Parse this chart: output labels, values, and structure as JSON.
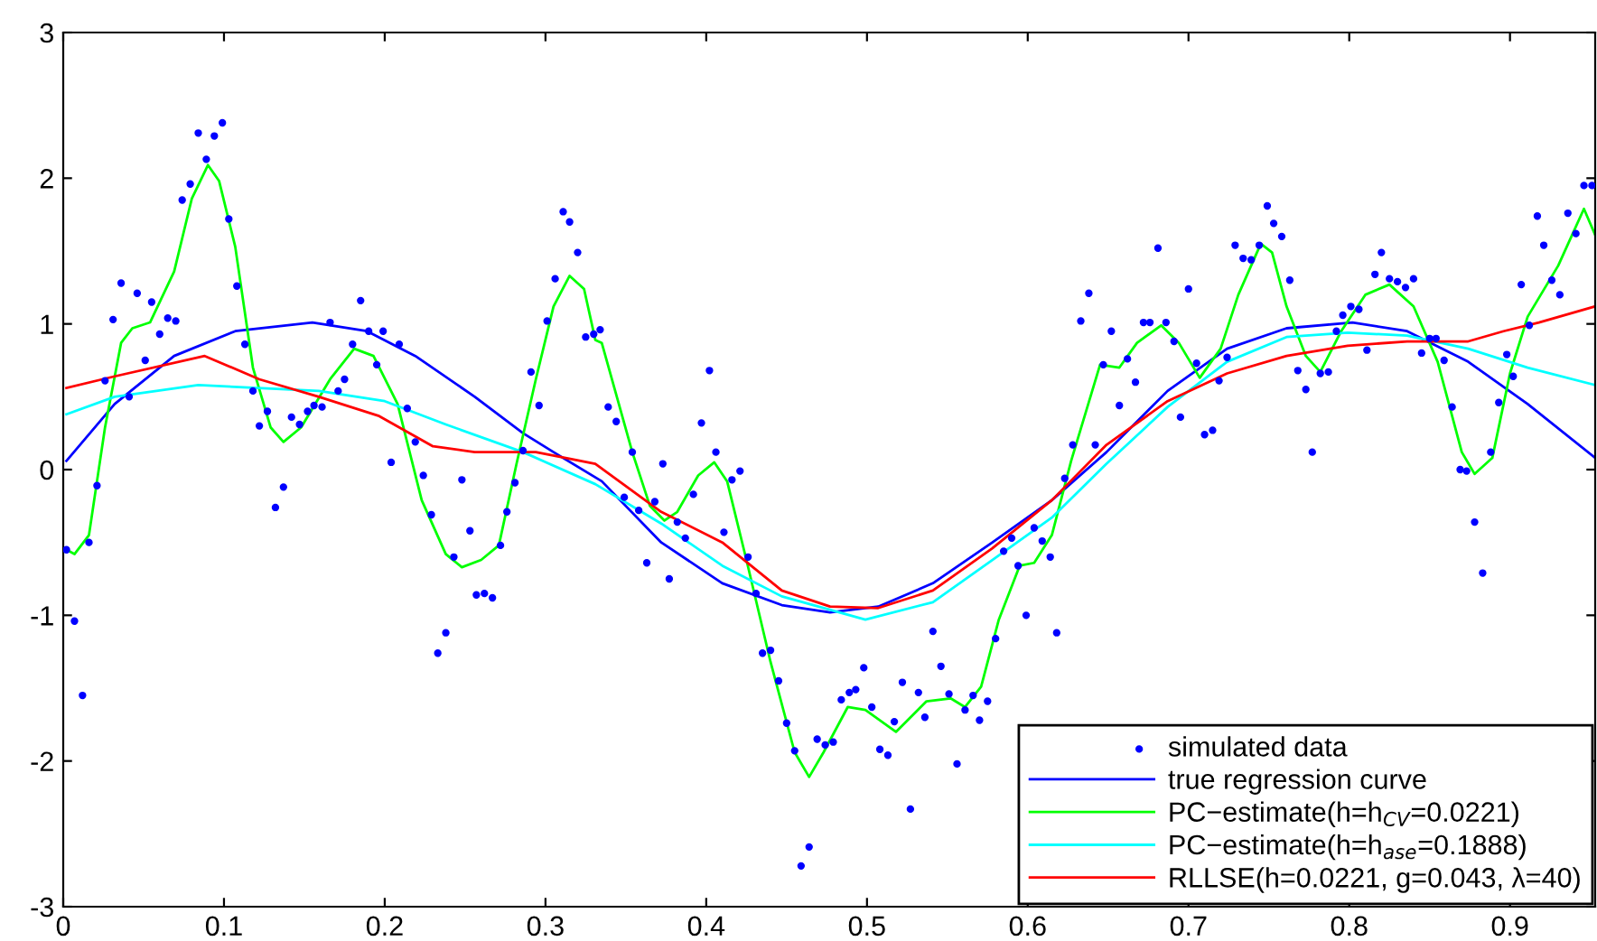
{
  "chart_data": {
    "type": "line",
    "xlim": [
      0,
      0.953
    ],
    "ylim": [
      -3,
      3
    ],
    "xticks": [
      0,
      0.1,
      0.2,
      0.3,
      0.4,
      0.5,
      0.6,
      0.7,
      0.8,
      0.9
    ],
    "yticks": [
      -3,
      -2,
      -1,
      0,
      1,
      2,
      3
    ],
    "grid": false,
    "legend": "bottom right",
    "series": [
      {
        "name": "simulated data",
        "type": "scatter",
        "marker": "circle",
        "color": "#0000ff",
        "x": [
          0.002,
          0.007,
          0.012,
          0.016,
          0.021,
          0.026,
          0.031,
          0.036,
          0.041,
          0.046,
          0.051,
          0.055,
          0.06,
          0.065,
          0.07,
          0.074,
          0.079,
          0.084,
          0.089,
          0.094,
          0.099,
          0.103,
          0.108,
          0.113,
          0.118,
          0.122,
          0.127,
          0.132,
          0.137,
          0.142,
          0.147,
          0.152,
          0.156,
          0.161,
          0.166,
          0.171,
          0.175,
          0.18,
          0.185,
          0.19,
          0.195,
          0.199,
          0.204,
          0.209,
          0.214,
          0.219,
          0.224,
          0.229,
          0.233,
          0.238,
          0.243,
          0.248,
          0.253,
          0.257,
          0.262,
          0.267,
          0.272,
          0.276,
          0.281,
          0.286,
          0.291,
          0.296,
          0.301,
          0.306,
          0.311,
          0.315,
          0.32,
          0.325,
          0.33,
          0.334,
          0.339,
          0.344,
          0.349,
          0.354,
          0.358,
          0.363,
          0.368,
          0.373,
          0.377,
          0.382,
          0.387,
          0.392,
          0.397,
          0.402,
          0.406,
          0.411,
          0.416,
          0.421,
          0.426,
          0.431,
          0.435,
          0.44,
          0.445,
          0.45,
          0.455,
          0.459,
          0.464,
          0.469,
          0.474,
          0.479,
          0.484,
          0.489,
          0.493,
          0.498,
          0.503,
          0.508,
          0.513,
          0.517,
          0.522,
          0.527,
          0.532,
          0.536,
          0.541,
          0.546,
          0.551,
          0.556,
          0.561,
          0.566,
          0.57,
          0.575,
          0.58,
          0.585,
          0.59,
          0.594,
          0.599,
          0.604,
          0.609,
          0.614,
          0.618,
          0.623,
          0.628,
          0.633,
          0.638,
          0.642,
          0.647,
          0.652,
          0.657,
          0.662,
          0.667,
          0.672,
          0.676,
          0.681,
          0.686,
          0.691,
          0.695,
          0.7,
          0.705,
          0.71,
          0.715,
          0.719,
          0.724,
          0.729,
          0.734,
          0.739,
          0.744,
          0.749,
          0.753,
          0.758,
          0.763,
          0.768,
          0.773,
          0.777,
          0.782,
          0.787,
          0.792,
          0.796,
          0.801,
          0.806,
          0.811,
          0.816,
          0.82,
          0.825,
          0.83,
          0.835,
          0.84,
          0.845,
          0.85,
          0.854,
          0.859,
          0.864,
          0.869,
          0.873,
          0.878,
          0.883,
          0.888,
          0.893,
          0.898,
          0.902,
          0.907,
          0.912,
          0.917,
          0.921,
          0.926,
          0.931,
          0.936,
          0.941,
          0.946,
          0.951
        ],
        "values": [
          -0.55,
          -1.04,
          -1.55,
          -0.5,
          -0.11,
          0.61,
          1.03,
          1.28,
          0.5,
          1.21,
          0.75,
          1.15,
          0.93,
          1.04,
          1.02,
          1.85,
          1.96,
          2.31,
          2.13,
          2.29,
          2.38,
          1.72,
          1.26,
          0.86,
          0.54,
          0.3,
          0.4,
          -0.26,
          -0.12,
          0.36,
          0.31,
          0.4,
          0.44,
          0.43,
          1.01,
          0.54,
          0.62,
          0.86,
          1.16,
          0.95,
          0.72,
          0.95,
          0.05,
          0.86,
          0.42,
          0.19,
          -0.04,
          -0.31,
          -1.26,
          -1.12,
          -0.6,
          -0.07,
          -0.42,
          -0.86,
          -0.85,
          -0.88,
          -0.52,
          -0.29,
          -0.09,
          0.13,
          0.67,
          0.44,
          1.02,
          1.31,
          1.77,
          1.7,
          1.49,
          0.91,
          0.93,
          0.96,
          0.43,
          0.33,
          -0.19,
          0.12,
          -0.28,
          -0.64,
          -0.22,
          0.04,
          -0.75,
          -0.36,
          -0.47,
          -0.17,
          0.32,
          0.68,
          0.12,
          -0.43,
          -0.07,
          -0.01,
          -0.6,
          -0.85,
          -1.26,
          -1.24,
          -1.45,
          -1.74,
          -1.93,
          -2.72,
          -2.59,
          -1.85,
          -1.89,
          -1.87,
          -1.58,
          -1.53,
          -1.51,
          -1.36,
          -1.63,
          -1.92,
          -1.96,
          -1.73,
          -1.46,
          -2.33,
          -1.53,
          -1.7,
          -1.11,
          -1.35,
          -1.54,
          -2.02,
          -1.65,
          -1.55,
          -1.72,
          -1.59,
          -1.16,
          -0.56,
          -0.47,
          -0.66,
          -1.0,
          -0.4,
          -0.49,
          -0.6,
          -1.12,
          -0.06,
          0.17,
          1.02,
          1.21,
          0.17,
          0.72,
          0.95,
          0.44,
          0.76,
          0.6,
          1.01,
          1.01,
          1.52,
          1.01,
          0.88,
          0.36,
          1.24,
          0.73,
          0.24,
          0.27,
          0.61,
          0.77,
          1.54,
          1.45,
          1.44,
          1.54,
          1.81,
          1.69,
          1.6,
          1.3,
          0.68,
          0.55,
          0.12,
          0.66,
          0.67,
          0.95,
          1.06,
          1.12,
          1.1,
          0.82,
          1.34,
          1.49,
          1.31,
          1.29,
          1.25,
          1.31,
          0.8,
          0.9,
          0.9,
          0.75,
          0.43,
          0.0,
          -0.01,
          -0.36,
          -0.71,
          0.12,
          0.46,
          0.79,
          0.64,
          1.27,
          0.99,
          1.74,
          1.54,
          1.3,
          1.2,
          1.76,
          1.62,
          1.95,
          1.95
        ]
      },
      {
        "name": "true regression curve",
        "color": "#0000ff",
        "x": [
          0.002,
          0.032,
          0.069,
          0.107,
          0.155,
          0.189,
          0.219,
          0.256,
          0.286,
          0.305,
          0.335,
          0.372,
          0.41,
          0.447,
          0.477,
          0.507,
          0.541,
          0.578,
          0.615,
          0.649,
          0.687,
          0.724,
          0.761,
          0.802,
          0.836,
          0.874,
          0.911,
          0.953
        ],
        "values": [
          0.06,
          0.45,
          0.78,
          0.95,
          1.01,
          0.95,
          0.78,
          0.5,
          0.25,
          0.12,
          -0.08,
          -0.5,
          -0.78,
          -0.93,
          -0.98,
          -0.94,
          -0.78,
          -0.5,
          -0.21,
          0.12,
          0.54,
          0.83,
          0.97,
          1.01,
          0.95,
          0.74,
          0.45,
          0.08
        ]
      },
      {
        "name": "PC−estimate(h=h$_{CV}$=0.0221)",
        "color": "#00ff00",
        "x": [
          0.002,
          0.007,
          0.016,
          0.026,
          0.036,
          0.043,
          0.054,
          0.069,
          0.08,
          0.09,
          0.097,
          0.107,
          0.118,
          0.129,
          0.137,
          0.148,
          0.166,
          0.181,
          0.193,
          0.208,
          0.223,
          0.238,
          0.248,
          0.26,
          0.271,
          0.282,
          0.294,
          0.305,
          0.315,
          0.324,
          0.331,
          0.335,
          0.354,
          0.365,
          0.374,
          0.382,
          0.395,
          0.405,
          0.413,
          0.425,
          0.44,
          0.455,
          0.464,
          0.473,
          0.488,
          0.499,
          0.518,
          0.537,
          0.552,
          0.561,
          0.571,
          0.582,
          0.595,
          0.604,
          0.615,
          0.627,
          0.645,
          0.657,
          0.668,
          0.683,
          0.694,
          0.707,
          0.72,
          0.731,
          0.745,
          0.752,
          0.761,
          0.773,
          0.782,
          0.795,
          0.81,
          0.825,
          0.84,
          0.855,
          0.87,
          0.878,
          0.889,
          0.9,
          0.911,
          0.93,
          0.946,
          0.953
        ],
        "values": [
          -0.55,
          -0.58,
          -0.45,
          0.29,
          0.87,
          0.97,
          1.01,
          1.36,
          1.86,
          2.09,
          1.98,
          1.53,
          0.7,
          0.29,
          0.19,
          0.29,
          0.62,
          0.83,
          0.78,
          0.45,
          -0.21,
          -0.58,
          -0.67,
          -0.62,
          -0.52,
          0.04,
          0.62,
          1.12,
          1.33,
          1.24,
          0.89,
          0.87,
          0.12,
          -0.25,
          -0.35,
          -0.29,
          -0.04,
          0.05,
          -0.08,
          -0.62,
          -1.32,
          -1.94,
          -2.11,
          -1.94,
          -1.63,
          -1.65,
          -1.8,
          -1.59,
          -1.57,
          -1.63,
          -1.49,
          -1.03,
          -0.66,
          -0.64,
          -0.45,
          0.06,
          0.72,
          0.7,
          0.87,
          0.99,
          0.87,
          0.63,
          0.83,
          1.2,
          1.55,
          1.49,
          1.12,
          0.78,
          0.67,
          0.95,
          1.2,
          1.27,
          1.12,
          0.74,
          0.12,
          -0.03,
          0.08,
          0.66,
          1.05,
          1.4,
          1.79,
          1.61
        ]
      },
      {
        "name": "PC−estimate(h=h$_{ase}$=0.1888)",
        "color": "#00ffff",
        "x": [
          0.002,
          0.032,
          0.084,
          0.159,
          0.2,
          0.238,
          0.286,
          0.331,
          0.372,
          0.41,
          0.447,
          0.499,
          0.541,
          0.578,
          0.615,
          0.649,
          0.687,
          0.724,
          0.761,
          0.799,
          0.836,
          0.874,
          0.911,
          0.953
        ],
        "values": [
          0.38,
          0.5,
          0.58,
          0.54,
          0.47,
          0.31,
          0.12,
          -0.1,
          -0.37,
          -0.66,
          -0.87,
          -1.03,
          -0.91,
          -0.62,
          -0.33,
          0.04,
          0.43,
          0.74,
          0.91,
          0.94,
          0.92,
          0.83,
          0.7,
          0.58
        ]
      },
      {
        "name": "RLLSE(h=0.0221, g=0.043, λ=40)",
        "color": "#ff0000",
        "x": [
          0.002,
          0.032,
          0.088,
          0.122,
          0.159,
          0.196,
          0.23,
          0.256,
          0.294,
          0.331,
          0.372,
          0.41,
          0.447,
          0.477,
          0.507,
          0.541,
          0.578,
          0.615,
          0.649,
          0.687,
          0.724,
          0.761,
          0.799,
          0.836,
          0.874,
          0.896,
          0.918,
          0.953
        ],
        "values": [
          0.56,
          0.64,
          0.78,
          0.62,
          0.5,
          0.37,
          0.16,
          0.12,
          0.12,
          0.04,
          -0.29,
          -0.5,
          -0.83,
          -0.94,
          -0.95,
          -0.83,
          -0.54,
          -0.21,
          0.17,
          0.47,
          0.66,
          0.78,
          0.85,
          0.88,
          0.88,
          0.95,
          1.01,
          1.12
        ]
      }
    ]
  }
}
